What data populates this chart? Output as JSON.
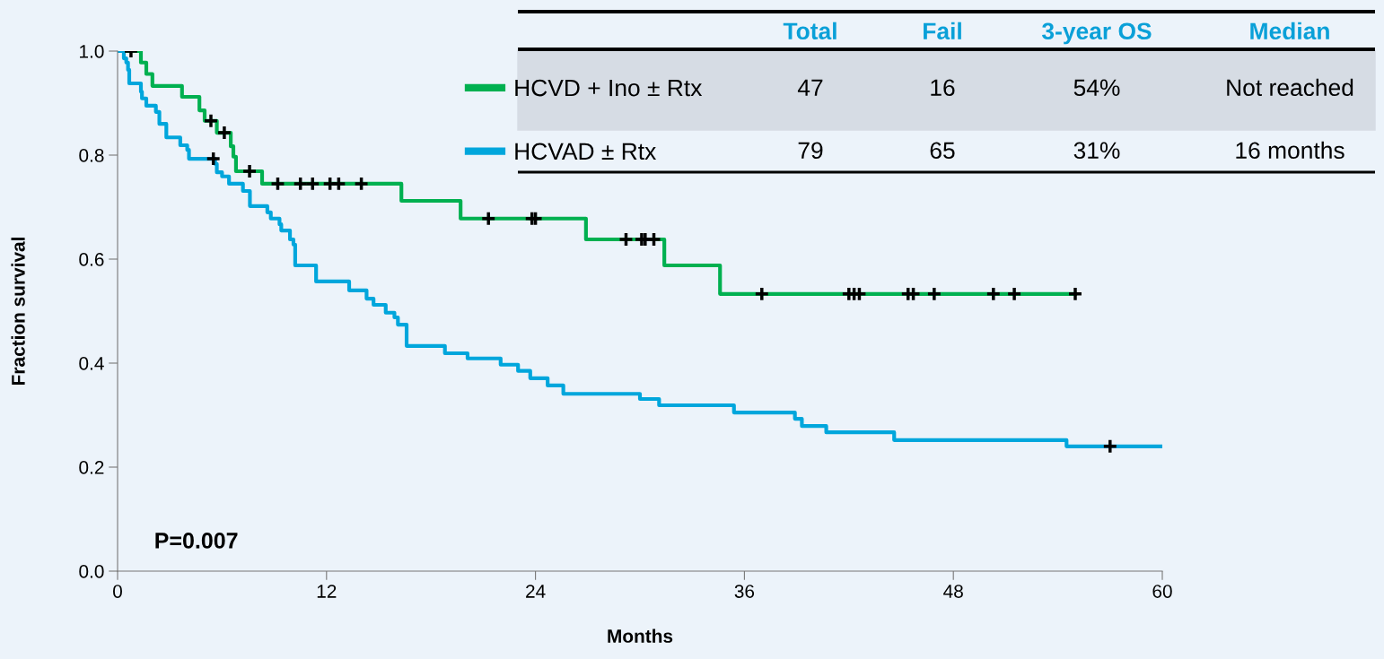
{
  "chart_data": {
    "type": "step",
    "xlabel": "Months",
    "ylabel": "Fraction survival",
    "xlim": [
      0,
      60
    ],
    "xticks": [
      0,
      12,
      24,
      36,
      48,
      60
    ],
    "ylim": [
      0,
      1.0
    ],
    "yticks": [
      {
        "value": 0,
        "label": "0.0"
      },
      0.2,
      0.4,
      0.6,
      0.8,
      {
        "value": 1.0,
        "label": "1.0"
      }
    ],
    "grid": false,
    "legend": "top",
    "line_style": "solid",
    "series": [
      {
        "name": "HCVD + Ino ± Rtx",
        "color": "#00b050",
        "x": [
          0,
          1.34,
          1.65,
          2.0,
          3.7,
          4.7,
          5.0,
          5.7,
          6.5,
          6.65,
          6.8,
          8.3,
          16.3,
          19.7,
          26.9,
          31.4,
          34.6,
          55.0
        ],
        "values": [
          1.0,
          0.978,
          0.956,
          0.933,
          0.912,
          0.886,
          0.866,
          0.843,
          0.817,
          0.797,
          0.769,
          0.745,
          0.712,
          0.678,
          0.638,
          0.588,
          0.533,
          0.533
        ]
      },
      {
        "name": "HCVAD ± Rtx",
        "color": "#00a6dc",
        "x": [
          0,
          0.36,
          0.5,
          0.6,
          0.67,
          1.34,
          1.4,
          1.65,
          2.2,
          2.4,
          2.8,
          3.6,
          4.0,
          4.1,
          5.6,
          5.7,
          6.0,
          6.4,
          7.2,
          7.6,
          8.6,
          8.8,
          9.3,
          9.4,
          9.9,
          10.1,
          10.2,
          11.4,
          13.3,
          14.3,
          14.7,
          15.4,
          15.9,
          16.1,
          16.6,
          18.8,
          20.1,
          22.0,
          23.0,
          23.7,
          24.7,
          25.6,
          30.0,
          31.1,
          35.4,
          38.9,
          39.3,
          40.7,
          44.6,
          54.5,
          60.0
        ],
        "values": [
          1.0,
          0.986,
          0.978,
          0.964,
          0.938,
          0.922,
          0.909,
          0.895,
          0.883,
          0.86,
          0.834,
          0.819,
          0.81,
          0.793,
          0.783,
          0.767,
          0.759,
          0.745,
          0.731,
          0.702,
          0.69,
          0.678,
          0.667,
          0.655,
          0.638,
          0.628,
          0.588,
          0.557,
          0.54,
          0.524,
          0.512,
          0.497,
          0.488,
          0.474,
          0.433,
          0.419,
          0.409,
          0.397,
          0.385,
          0.371,
          0.357,
          0.341,
          0.331,
          0.319,
          0.305,
          0.293,
          0.279,
          0.267,
          0.252,
          0.24,
          0.24
        ]
      },
      {
        "color": "#000000",
        "type": "scatter",
        "marker": "cross",
        "x": [
          0.77,
          5.36,
          6.13,
          7.58,
          9.2,
          10.5,
          11.2,
          12.2,
          12.7,
          14.0,
          21.3,
          23.8,
          24.0,
          29.2,
          30.1,
          30.3,
          30.8,
          37.0,
          42.0,
          42.3,
          42.6,
          45.4,
          45.7,
          46.9,
          50.3,
          51.5,
          55.0
        ],
        "values": [
          1.0,
          0.866,
          0.843,
          0.769,
          0.745,
          0.745,
          0.745,
          0.745,
          0.745,
          0.745,
          0.678,
          0.678,
          0.678,
          0.638,
          0.638,
          0.638,
          0.638,
          0.533,
          0.533,
          0.533,
          0.533,
          0.533,
          0.533,
          0.533,
          0.533,
          0.533,
          0.533
        ]
      },
      {
        "color": "#000000",
        "type": "scatter",
        "marker": "cross",
        "x": [
          5.5,
          57.0
        ],
        "values": [
          0.793,
          0.24
        ]
      }
    ],
    "annotations": [
      "Total",
      "Fail",
      "3-year OS",
      "Median",
      "47",
      "16",
      "54%",
      "Not reached",
      "79",
      "65",
      "31%",
      "16 months",
      "P=0.007"
    ]
  }
}
